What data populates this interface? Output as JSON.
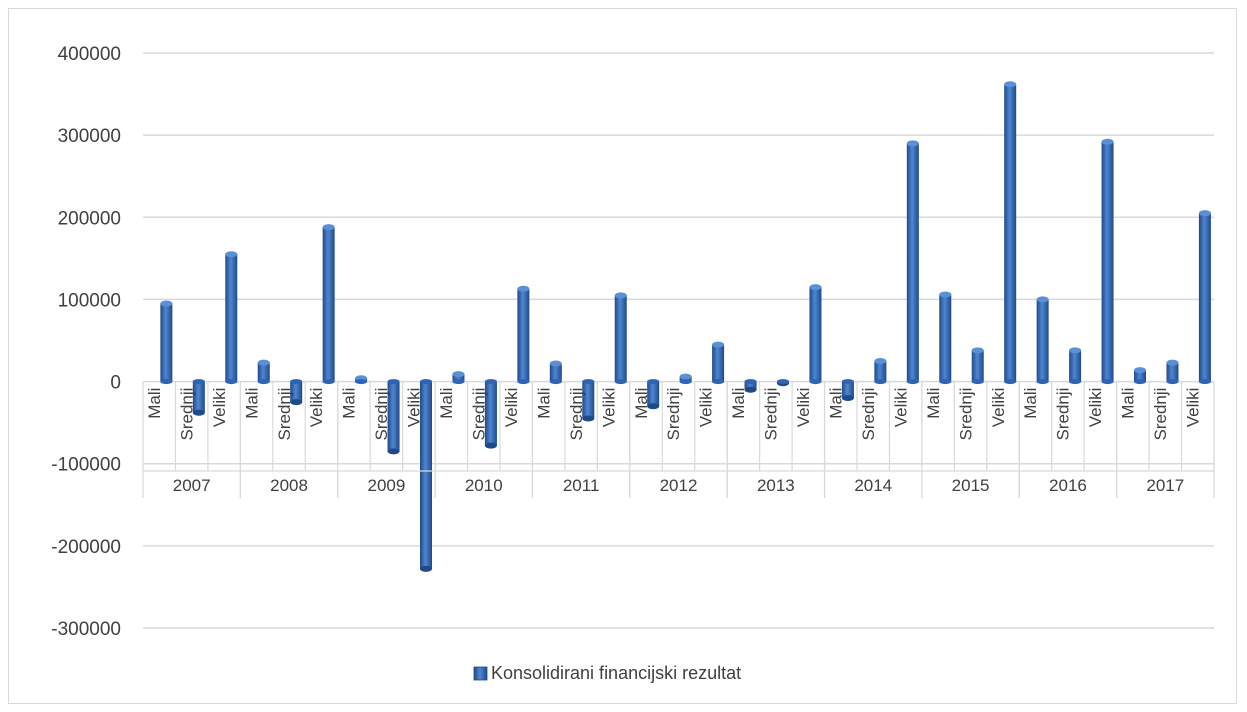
{
  "chart_data": {
    "type": "bar",
    "title": "",
    "xlabel": "",
    "ylabel": "",
    "ylim": [
      -300000,
      400000
    ],
    "yticks": [
      400000,
      300000,
      200000,
      100000,
      0,
      -100000,
      -200000,
      -300000
    ],
    "ytick_labels": [
      "400000",
      "300000",
      "200000",
      "100000",
      "0",
      "-100000",
      "-200000",
      "-300000"
    ],
    "grid": true,
    "legend_position": "bottom",
    "groups": [
      "2007",
      "2008",
      "2009",
      "2010",
      "2011",
      "2012",
      "2013",
      "2014",
      "2015",
      "2016",
      "2017"
    ],
    "subcategories": [
      "Mali",
      "Srednji",
      "Veliki"
    ],
    "series": [
      {
        "name": "Konsolidirani financijski rezultat",
        "color": "#2e64b3",
        "values": [
          95000,
          -38000,
          155000,
          23000,
          -25000,
          188000,
          4000,
          -85000,
          -228000,
          9000,
          -78000,
          113000,
          22000,
          -45000,
          105000,
          -30000,
          6000,
          45000,
          -10000,
          -2000,
          115000,
          -20000,
          25000,
          290000,
          106000,
          38000,
          362000,
          100000,
          38000,
          292000,
          14000,
          23000,
          205000
        ]
      }
    ]
  }
}
